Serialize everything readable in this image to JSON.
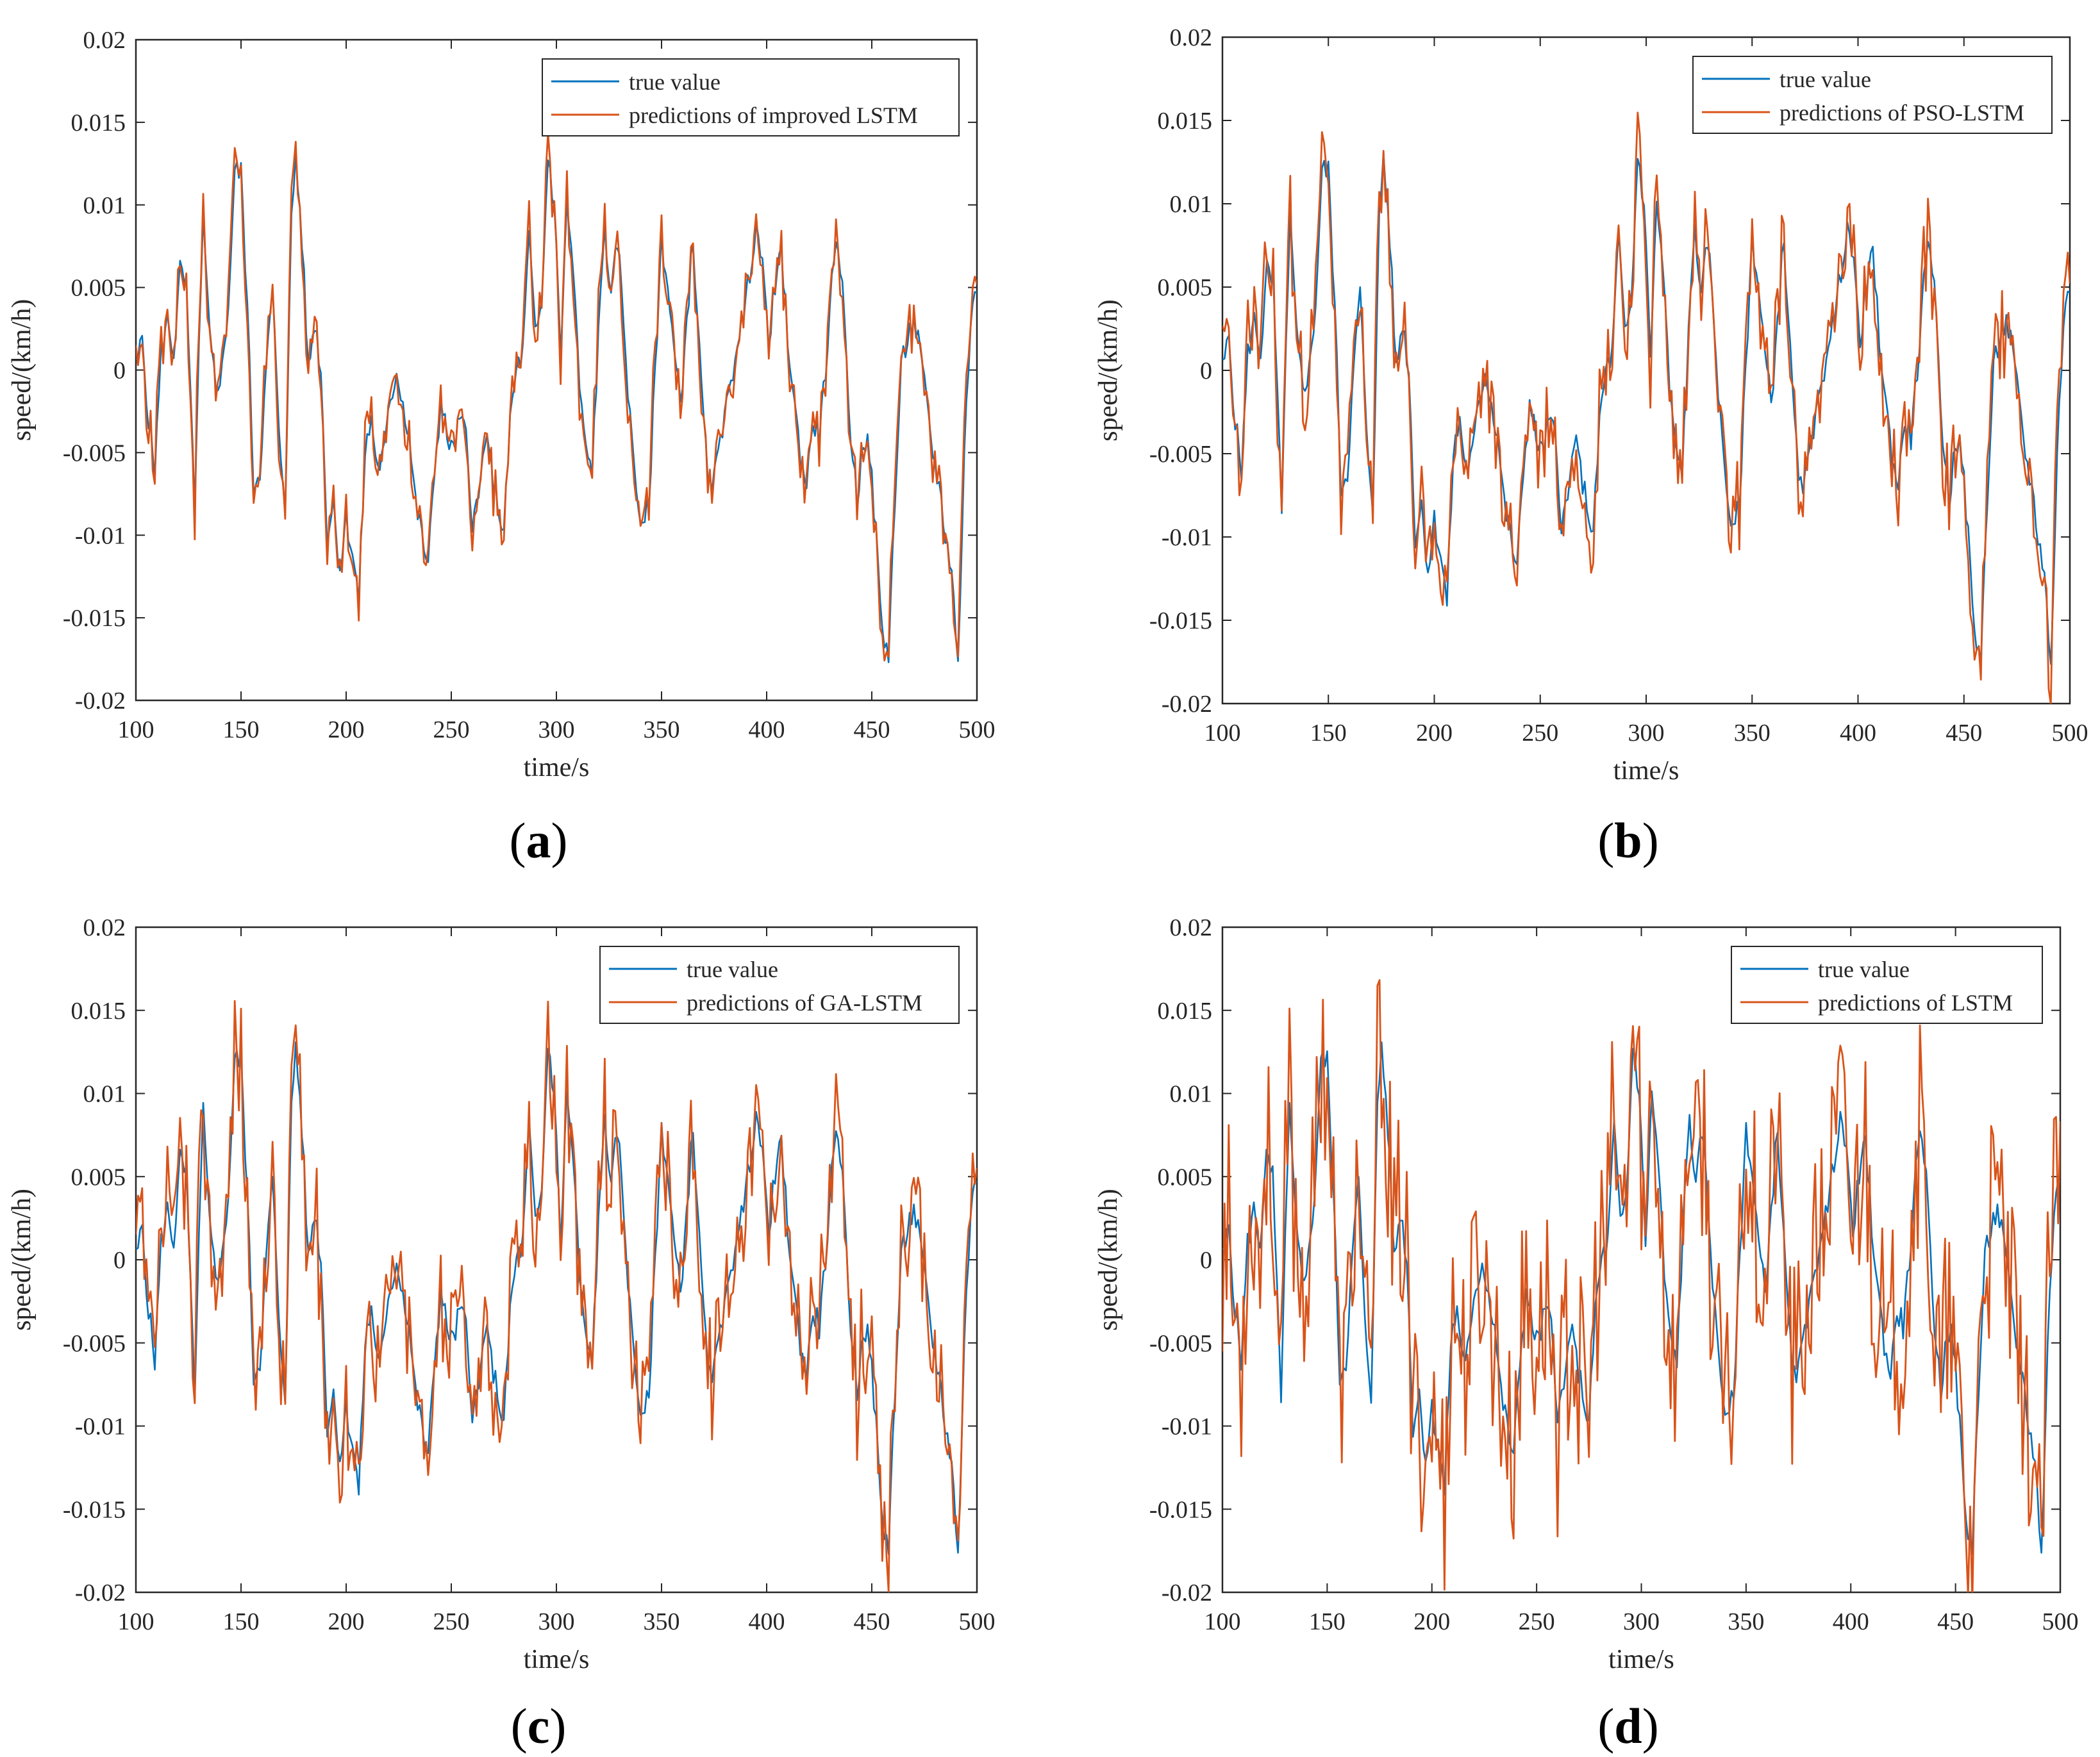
{
  "chart_data": [
    {
      "type": "line",
      "panel_label": "a",
      "xlabel": "time/s",
      "ylabel": "speed/(km/h)",
      "xlim": [
        100,
        500
      ],
      "ylim": [
        -0.02,
        0.02
      ],
      "xticks": [
        100,
        150,
        200,
        250,
        300,
        350,
        400,
        450,
        500
      ],
      "xtick_labels": [
        "100",
        "150",
        "200",
        "250",
        "300",
        "350",
        "400",
        "450",
        "500"
      ],
      "yticks": [
        0.02,
        0.015,
        0.01,
        0.005,
        0,
        -0.005,
        -0.01,
        -0.015,
        -0.02
      ],
      "ytick_labels": [
        "0.02",
        "0.015",
        "0.01",
        "0.005",
        "0",
        "-0.005",
        "-0.01",
        "-0.015",
        "-0.02"
      ],
      "legend_position": "top-right",
      "series": [
        {
          "name": "true value",
          "color": "#0072BD",
          "noise": 0.0,
          "seed": 0
        },
        {
          "name": "predictions of improved LSTM",
          "color": "#D95319",
          "noise": 0.0006,
          "seed": 11
        }
      ]
    },
    {
      "type": "line",
      "panel_label": "b",
      "xlabel": "time/s",
      "ylabel": "speed/(km/h)",
      "xlim": [
        100,
        500
      ],
      "ylim": [
        -0.02,
        0.02
      ],
      "xticks": [
        100,
        150,
        200,
        250,
        300,
        350,
        400,
        450,
        500
      ],
      "xtick_labels": [
        "100",
        "150",
        "200",
        "250",
        "300",
        "350",
        "400",
        "450",
        "500"
      ],
      "yticks": [
        0.02,
        0.015,
        0.01,
        0.005,
        0,
        -0.005,
        -0.01,
        -0.015,
        -0.02
      ],
      "ytick_labels": [
        "0.02",
        "0.015",
        "0.01",
        "0.005",
        "0",
        "-0.005",
        "-0.01",
        "-0.015",
        "-0.02"
      ],
      "legend_position": "top-right",
      "series": [
        {
          "name": "true value",
          "color": "#0072BD",
          "noise": 0.0,
          "seed": 0
        },
        {
          "name": "predictions of PSO-LSTM",
          "color": "#D95319",
          "noise": 0.0013,
          "seed": 23
        }
      ]
    },
    {
      "type": "line",
      "panel_label": "c",
      "xlabel": "time/s",
      "ylabel": "speed/(km/h)",
      "xlim": [
        100,
        500
      ],
      "ylim": [
        -0.02,
        0.02
      ],
      "xticks": [
        100,
        150,
        200,
        250,
        300,
        350,
        400,
        450,
        500
      ],
      "xtick_labels": [
        "100",
        "150",
        "200",
        "250",
        "300",
        "350",
        "400",
        "450",
        "500"
      ],
      "yticks": [
        0.02,
        0.015,
        0.01,
        0.005,
        0,
        -0.005,
        -0.01,
        -0.015,
        -0.02
      ],
      "ytick_labels": [
        "0.02",
        "0.015",
        "0.01",
        "0.005",
        "0",
        "-0.005",
        "-0.01",
        "-0.015",
        "-0.02"
      ],
      "legend_position": "top-right",
      "series": [
        {
          "name": "true value",
          "color": "#0072BD",
          "noise": 0.0,
          "seed": 0
        },
        {
          "name": "predictions of GA-LSTM",
          "color": "#D95319",
          "noise": 0.0018,
          "seed": 37
        }
      ]
    },
    {
      "type": "line",
      "panel_label": "d",
      "xlabel": "time/s",
      "ylabel": "speed/(km/h)",
      "xlim": [
        100,
        500
      ],
      "ylim": [
        -0.02,
        0.02
      ],
      "xticks": [
        100,
        150,
        200,
        250,
        300,
        350,
        400,
        450,
        500
      ],
      "xtick_labels": [
        "100",
        "150",
        "200",
        "250",
        "300",
        "350",
        "400",
        "450",
        "500"
      ],
      "yticks": [
        0.02,
        0.015,
        0.01,
        0.005,
        0,
        -0.005,
        -0.01,
        -0.015,
        -0.02
      ],
      "ytick_labels": [
        "0.02",
        "0.015",
        "0.01",
        "0.005",
        "0",
        "-0.005",
        "-0.01",
        "-0.015",
        "-0.02"
      ],
      "legend_position": "top-right",
      "series": [
        {
          "name": "true value",
          "color": "#0072BD",
          "noise": 0.0,
          "seed": 0
        },
        {
          "name": "predictions of LSTM",
          "color": "#D95319",
          "noise": 0.0035,
          "seed": 53
        }
      ]
    }
  ],
  "true_value_keypoints": [
    [
      100,
      0.0
    ],
    [
      103,
      0.002
    ],
    [
      106,
      -0.003
    ],
    [
      109,
      -0.006
    ],
    [
      112,
      0.001
    ],
    [
      115,
      0.003
    ],
    [
      118,
      0.001
    ],
    [
      121,
      0.006
    ],
    [
      124,
      0.005
    ],
    [
      126,
      -0.002
    ],
    [
      128,
      -0.008
    ],
    [
      130,
      0.001
    ],
    [
      132,
      0.009
    ],
    [
      135,
      0.002
    ],
    [
      138,
      -0.001
    ],
    [
      141,
      0.0
    ],
    [
      144,
      0.004
    ],
    [
      147,
      0.012
    ],
    [
      150,
      0.012
    ],
    [
      153,
      0.004
    ],
    [
      156,
      -0.007
    ],
    [
      159,
      -0.006
    ],
    [
      162,
      0.0
    ],
    [
      165,
      0.005
    ],
    [
      168,
      -0.004
    ],
    [
      171,
      -0.008
    ],
    [
      174,
      0.009
    ],
    [
      176,
      0.013
    ],
    [
      179,
      0.008
    ],
    [
      182,
      0.0
    ],
    [
      185,
      0.003
    ],
    [
      188,
      0.0
    ],
    [
      191,
      -0.01
    ],
    [
      194,
      -0.008
    ],
    [
      197,
      -0.012
    ],
    [
      200,
      -0.009
    ],
    [
      203,
      -0.011
    ],
    [
      206,
      -0.014
    ],
    [
      209,
      -0.005
    ],
    [
      212,
      -0.003
    ],
    [
      215,
      -0.006
    ],
    [
      218,
      -0.005
    ],
    [
      221,
      -0.002
    ],
    [
      224,
      0.0
    ],
    [
      227,
      -0.002
    ],
    [
      230,
      -0.004
    ],
    [
      233,
      -0.008
    ],
    [
      236,
      -0.01
    ],
    [
      239,
      -0.012
    ],
    [
      242,
      -0.006
    ],
    [
      245,
      -0.002
    ],
    [
      248,
      -0.004
    ],
    [
      251,
      -0.005
    ],
    [
      254,
      -0.003
    ],
    [
      257,
      -0.004
    ],
    [
      260,
      -0.009
    ],
    [
      263,
      -0.008
    ],
    [
      266,
      -0.004
    ],
    [
      269,
      -0.006
    ],
    [
      272,
      -0.008
    ],
    [
      275,
      -0.01
    ],
    [
      278,
      -0.003
    ],
    [
      281,
      0.0
    ],
    [
      284,
      0.001
    ],
    [
      287,
      0.008
    ],
    [
      290,
      0.002
    ],
    [
      293,
      0.004
    ],
    [
      296,
      0.013
    ],
    [
      299,
      0.01
    ],
    [
      302,
      0.001
    ],
    [
      305,
      0.01
    ],
    [
      308,
      0.006
    ],
    [
      311,
      -0.001
    ],
    [
      314,
      -0.005
    ],
    [
      317,
      -0.006
    ],
    [
      320,
      0.002
    ],
    [
      323,
      0.009
    ],
    [
      326,
      0.004
    ],
    [
      329,
      0.008
    ],
    [
      332,
      0.003
    ],
    [
      335,
      -0.003
    ],
    [
      338,
      -0.007
    ],
    [
      341,
      -0.01
    ],
    [
      344,
      -0.008
    ],
    [
      347,
      0.0
    ],
    [
      350,
      0.008
    ],
    [
      353,
      0.005
    ],
    [
      356,
      0.001
    ],
    [
      359,
      -0.002
    ],
    [
      362,
      0.003
    ],
    [
      365,
      0.008
    ],
    [
      368,
      0.001
    ],
    [
      371,
      -0.005
    ],
    [
      374,
      -0.008
    ],
    [
      377,
      -0.004
    ],
    [
      380,
      -0.003
    ],
    [
      383,
      -0.001
    ],
    [
      386,
      0.002
    ],
    [
      389,
      0.003
    ],
    [
      392,
      0.006
    ],
    [
      395,
      0.009
    ],
    [
      398,
      0.006
    ],
    [
      401,
      0.002
    ],
    [
      404,
      0.005
    ],
    [
      407,
      0.007
    ],
    [
      410,
      0.002
    ],
    [
      413,
      -0.002
    ],
    [
      416,
      -0.005
    ],
    [
      419,
      -0.007
    ],
    [
      422,
      -0.003
    ],
    [
      425,
      -0.004
    ],
    [
      428,
      0.0
    ],
    [
      431,
      0.005
    ],
    [
      434,
      0.008
    ],
    [
      437,
      0.003
    ],
    [
      440,
      -0.004
    ],
    [
      443,
      -0.008
    ],
    [
      446,
      -0.004
    ],
    [
      449,
      -0.005
    ],
    [
      452,
      -0.01
    ],
    [
      455,
      -0.016
    ],
    [
      458,
      -0.017
    ],
    [
      461,
      -0.008
    ],
    [
      464,
      0.0
    ],
    [
      467,
      0.002
    ],
    [
      470,
      0.003
    ],
    [
      473,
      0.001
    ],
    [
      476,
      -0.002
    ],
    [
      479,
      -0.005
    ],
    [
      482,
      -0.007
    ],
    [
      485,
      -0.01
    ],
    [
      488,
      -0.012
    ],
    [
      491,
      -0.018
    ],
    [
      494,
      -0.005
    ],
    [
      497,
      0.003
    ],
    [
      500,
      0.005
    ]
  ]
}
